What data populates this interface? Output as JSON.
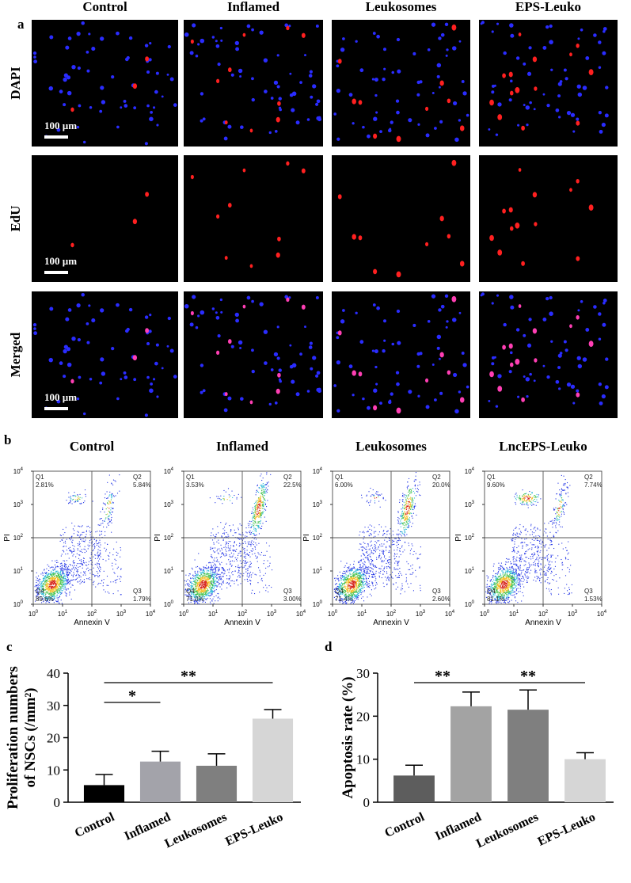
{
  "panel_a": {
    "label": "a",
    "columns": [
      "Control",
      "Inflamed",
      "Leukosomes",
      "EPS-Leuko"
    ],
    "rows": [
      "DAPI",
      "EdU",
      "Merged"
    ],
    "scale_bar": "100 µm"
  },
  "panel_b": {
    "label": "b",
    "x_label": "Annexin V",
    "y_label": "PI",
    "tick_base": "10",
    "tick_exponents": [
      "0",
      "1",
      "2",
      "3",
      "4"
    ],
    "plots": [
      {
        "title": "Control",
        "quadrants": [
          {
            "name": "Q1",
            "percent": "2.81%"
          },
          {
            "name": "Q2",
            "percent": "5.84%"
          },
          {
            "name": "Q3",
            "percent": "1.79%"
          },
          {
            "name": "Q4",
            "percent": "89.6%"
          }
        ]
      },
      {
        "title": "Inflamed",
        "quadrants": [
          {
            "name": "Q1",
            "percent": "3.53%"
          },
          {
            "name": "Q2",
            "percent": "22.5%"
          },
          {
            "name": "Q3",
            "percent": "3.00%"
          },
          {
            "name": "Q4",
            "percent": "71.0%"
          }
        ]
      },
      {
        "title": "Leukosomes",
        "quadrants": [
          {
            "name": "Q1",
            "percent": "6.00%"
          },
          {
            "name": "Q2",
            "percent": "20.0%"
          },
          {
            "name": "Q3",
            "percent": "2.60%"
          },
          {
            "name": "Q4",
            "percent": "71.4%"
          }
        ]
      },
      {
        "title": "LncEPS-Leuko",
        "quadrants": [
          {
            "name": "Q1",
            "percent": "9.60%"
          },
          {
            "name": "Q2",
            "percent": "7.74%"
          },
          {
            "name": "Q3",
            "percent": "1.53%"
          },
          {
            "name": "Q4",
            "percent": "81.1%"
          }
        ]
      }
    ]
  },
  "chart_data": [
    {
      "type": "bar",
      "panel_label": "c",
      "y_label": [
        "Proliferation numbers",
        "of NSCs (/mm²)"
      ],
      "categories": [
        "Control",
        "Inflamed",
        "Leukosomes",
        "EPS-Leuko"
      ],
      "values": [
        5.3,
        12.6,
        11.3,
        25.9
      ],
      "errors": [
        3.3,
        3.2,
        3.7,
        2.8
      ],
      "colors": [
        "#000000",
        "#a3a3aa",
        "#7f7f7f",
        "#d6d6d6"
      ],
      "ylim": [
        0,
        40
      ],
      "yticks": [
        0,
        10,
        20,
        30,
        40
      ],
      "significance": [
        {
          "label": "**",
          "between": [
            "Control",
            "EPS-Leuko"
          ]
        },
        {
          "label": "*",
          "between": [
            "Control",
            "Inflamed"
          ]
        }
      ]
    },
    {
      "type": "bar",
      "panel_label": "d",
      "y_label": [
        "Apoptosis rate (%)"
      ],
      "categories": [
        "Control",
        "Inflamed",
        "Leukosomes",
        "EPS-Leuko"
      ],
      "values": [
        6.2,
        22.3,
        21.5,
        10.0
      ],
      "errors": [
        2.4,
        3.3,
        4.6,
        1.5
      ],
      "colors": [
        "#5d5d5d",
        "#a3a3a3",
        "#7f7f7f",
        "#d6d6d6"
      ],
      "ylim": [
        0,
        30
      ],
      "yticks": [
        0,
        10,
        20,
        30
      ],
      "significance": [
        {
          "label": "**",
          "between": [
            "Control",
            "Inflamed"
          ]
        },
        {
          "label": "**",
          "between": [
            "Inflamed",
            "EPS-Leuko"
          ]
        }
      ]
    }
  ]
}
